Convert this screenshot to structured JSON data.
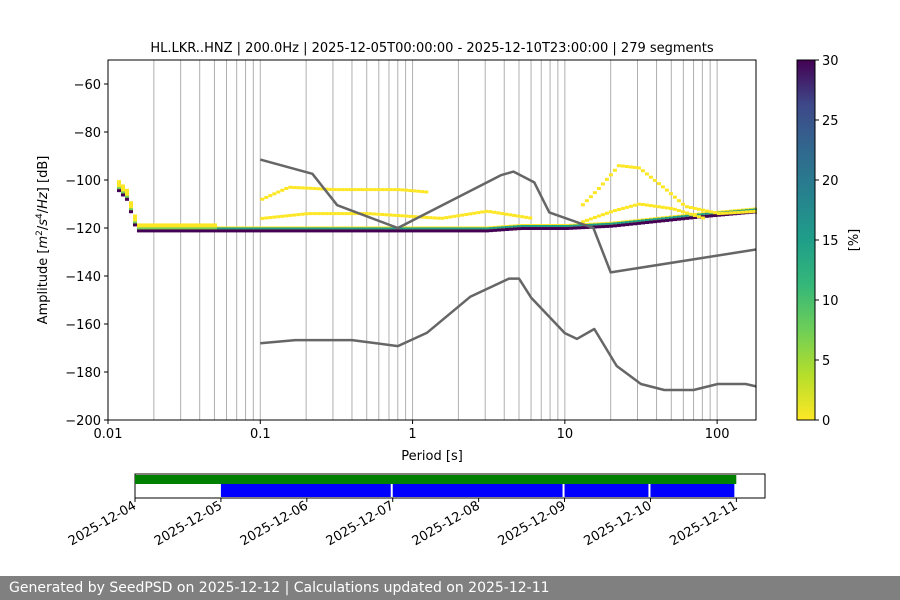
{
  "chart_data": [
    {
      "type": "heatmap",
      "title": "HL.LKR..HNZ | 200.0Hz | 2025-12-05T00:00:00 - 2025-12-10T23:00:00 | 279 segments",
      "xlabel": "Period [s]",
      "ylabel": "Amplitude [m²/s⁴/Hz] [dB]",
      "x_scale": "log",
      "xlim": [
        0.01,
        180
      ],
      "ylim": [
        -200,
        -50
      ],
      "x_ticks": [
        "0.01",
        "0.1",
        "1",
        "10",
        "100"
      ],
      "y_ticks": [
        "−60",
        "−80",
        "−100",
        "−120",
        "−140",
        "−160",
        "−180",
        "−200"
      ],
      "grid": "vertical minor + major, on x only",
      "colorbar": {
        "label": "[%]",
        "range": [
          0,
          30
        ],
        "ticks": [
          "0",
          "5",
          "10",
          "15",
          "20",
          "25",
          "30"
        ],
        "colormap": "viridis_r"
      },
      "mode_line": [
        [
          0.011,
          -103
        ],
        [
          0.013,
          -108
        ],
        [
          0.015,
          -121
        ],
        [
          0.03,
          -121
        ],
        [
          0.1,
          -121
        ],
        [
          0.3,
          -121
        ],
        [
          1,
          -121
        ],
        [
          3,
          -121
        ],
        [
          5,
          -120
        ],
        [
          10,
          -120
        ],
        [
          20,
          -119
        ],
        [
          40,
          -117
        ],
        [
          80,
          -115
        ],
        [
          180,
          -113
        ]
      ],
      "secondary_bands": [
        {
          "points": [
            [
              0.1,
              -108
            ],
            [
              0.15,
              -103
            ],
            [
              0.3,
              -104
            ],
            [
              0.8,
              -104
            ],
            [
              1.2,
              -105
            ]
          ]
        },
        {
          "points": [
            [
              0.1,
              -116
            ],
            [
              0.2,
              -114
            ],
            [
              0.5,
              -114
            ],
            [
              1.5,
              -116
            ],
            [
              3,
              -113
            ],
            [
              6,
              -116
            ]
          ]
        },
        {
          "points": [
            [
              12,
              -112
            ],
            [
              16,
              -104
            ],
            [
              22,
              -94
            ],
            [
              30,
              -95
            ],
            [
              45,
              -104
            ],
            [
              60,
              -111
            ],
            [
              100,
              -114
            ],
            [
              180,
              -113
            ]
          ]
        },
        {
          "points": [
            [
              12,
              -118
            ],
            [
              20,
              -113
            ],
            [
              30,
              -110
            ],
            [
              50,
              -112
            ],
            [
              80,
              -116
            ]
          ]
        }
      ],
      "nhnm": {
        "name": "",
        "points": [
          [
            0.1,
            -91.5
          ],
          [
            0.22,
            -97.4
          ],
          [
            0.32,
            -110.5
          ],
          [
            0.8,
            -120
          ],
          [
            3.8,
            -98
          ],
          [
            4.6,
            -96.5
          ],
          [
            6.3,
            -101
          ],
          [
            7.9,
            -113.5
          ],
          [
            15.4,
            -120
          ],
          [
            20,
            -138.5
          ],
          [
            354.8,
            -126
          ]
        ]
      },
      "nlnm": {
        "name": "",
        "points": [
          [
            0.1,
            -168
          ],
          [
            0.17,
            -166.7
          ],
          [
            0.4,
            -166.7
          ],
          [
            0.8,
            -169.2
          ],
          [
            1.24,
            -163.7
          ],
          [
            2.4,
            -148.6
          ],
          [
            4.3,
            -141.1
          ],
          [
            5,
            -141.1
          ],
          [
            6,
            -149
          ],
          [
            10,
            -163.8
          ],
          [
            12,
            -166.2
          ],
          [
            15.6,
            -162.1
          ],
          [
            21.9,
            -177.5
          ],
          [
            31.6,
            -185
          ],
          [
            45,
            -187.5
          ],
          [
            70,
            -187.5
          ],
          [
            101,
            -185
          ],
          [
            154,
            -185
          ],
          [
            180,
            -186
          ]
        ]
      }
    },
    {
      "type": "timeline",
      "xlim": [
        "2025-12-04",
        "2025-12-11T08:00"
      ],
      "x_ticks": [
        "2025-12-04",
        "2025-12-05",
        "2025-12-06",
        "2025-12-07",
        "2025-12-08",
        "2025-12-09",
        "2025-12-10",
        "2025-12-11"
      ],
      "series": [
        {
          "color": "#008000",
          "intervals": [
            [
              "2025-12-04T00:00",
              "2025-12-10T23:59"
            ]
          ]
        },
        {
          "color": "#0000ff",
          "intervals": [
            [
              "2025-12-05T00:00",
              "2025-12-07T00:00"
            ],
            [
              "2025-12-07T00:00",
              "2025-12-09T00:00"
            ],
            [
              "2025-12-09T00:00",
              "2025-12-10T00:00"
            ],
            [
              "2025-12-10T00:00",
              "2025-12-11T00:00"
            ]
          ]
        }
      ]
    }
  ],
  "footer": {
    "text": "Generated by SeedPSD on 2025-12-12 | Calculations updated on 2025-12-11"
  },
  "colors": {
    "norm_model": "#666666",
    "grid": "#b0b0b0",
    "footer_bg": "#808080"
  }
}
